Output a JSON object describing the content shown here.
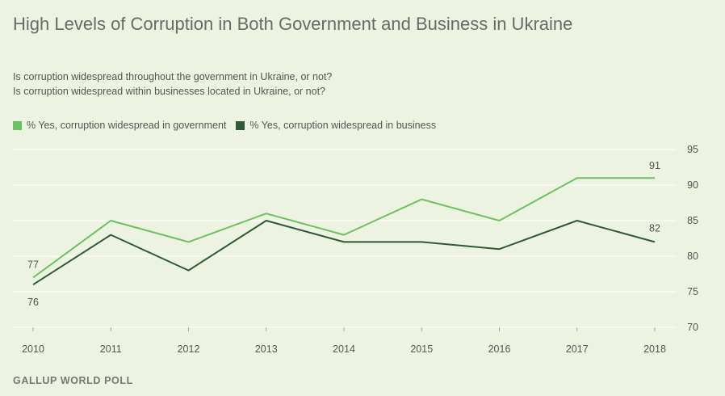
{
  "title": "High Levels of Corruption in Both Government and Business in Ukraine",
  "questions": [
    "Is corruption widespread throughout the government in Ukraine, or not?",
    "Is corruption widespread within businesses located in Ukraine, or not?"
  ],
  "source": "GALLUP WORLD POLL",
  "colors": {
    "background": "#edf3e1",
    "government": "#6cc260",
    "business": "#2f5a36",
    "grid": "#ffffff",
    "axis_text": "#555555"
  },
  "chart_data": {
    "type": "line",
    "x": [
      "2010",
      "2011",
      "2012",
      "2013",
      "2014",
      "2015",
      "2016",
      "2017",
      "2018"
    ],
    "series": [
      {
        "name": "% Yes, corruption widespread in government",
        "color": "#6cc260",
        "values": [
          77,
          85,
          82,
          86,
          83,
          88,
          85,
          91,
          91
        ]
      },
      {
        "name": "% Yes, corruption widespread in business",
        "color": "#2f5a36",
        "values": [
          76,
          83,
          78,
          85,
          82,
          82,
          81,
          85,
          82
        ]
      }
    ],
    "ylim": [
      70,
      95
    ],
    "yticks": [
      70,
      75,
      80,
      85,
      90,
      95
    ],
    "grid": true,
    "legend": "top-left",
    "data_labels": [
      {
        "series": 0,
        "index": 0,
        "text": "77"
      },
      {
        "series": 1,
        "index": 0,
        "text": "76"
      },
      {
        "series": 0,
        "index": 8,
        "text": "91"
      },
      {
        "series": 1,
        "index": 8,
        "text": "82"
      }
    ]
  }
}
